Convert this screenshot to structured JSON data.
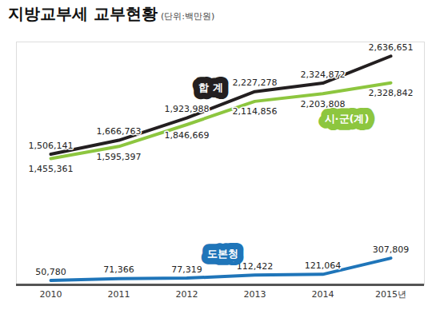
{
  "chart_data": {
    "type": "line",
    "title": "지방교부세 교부현황",
    "subtitle": "(단위:백만원)",
    "categories": [
      "2010",
      "2011",
      "2012",
      "2013",
      "2014",
      "2015년"
    ],
    "series": [
      {
        "name": "합 계",
        "color": "#231f20",
        "values": [
          1506141,
          1666763,
          1923988,
          2227278,
          2324872,
          2636651
        ],
        "value_labels": [
          "1,506,141",
          "1,666,763",
          "1,923,988",
          "2,227,278",
          "2,324,872",
          "2,636,651"
        ]
      },
      {
        "name": "시·군(계)",
        "color": "#8dc63f",
        "values": [
          1455361,
          1595397,
          1846669,
          2114856,
          2203808,
          2328842
        ],
        "value_labels": [
          "1,455,361",
          "1,595,397",
          "1,846,669",
          "2,114,856",
          "2,203,808",
          "2,328,842"
        ]
      },
      {
        "name": "도본청",
        "color": "#1f75b9",
        "values": [
          50780,
          71366,
          77319,
          112422,
          121064,
          307809
        ],
        "value_labels": [
          "50,780",
          "71,366",
          "77,319",
          "112,422",
          "121,064",
          "307,809"
        ]
      }
    ],
    "ylim": [
      0,
      2800000
    ],
    "grid": false,
    "data_labels": true,
    "tick_labels": "x"
  }
}
